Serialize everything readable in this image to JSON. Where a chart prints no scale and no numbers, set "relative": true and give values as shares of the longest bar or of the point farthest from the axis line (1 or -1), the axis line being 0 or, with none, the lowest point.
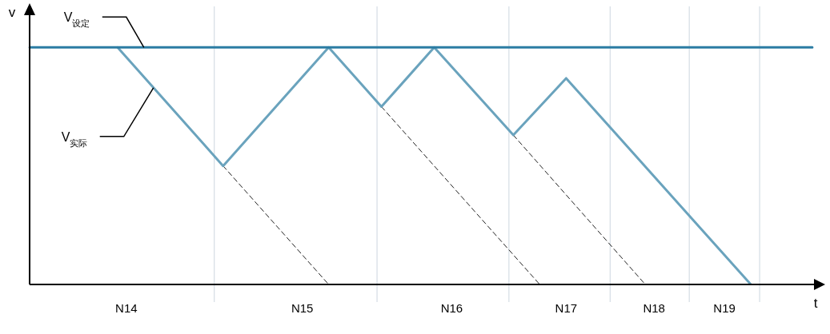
{
  "chart_data": {
    "type": "line",
    "relative": true,
    "xlabel": "t",
    "ylabel": "v",
    "legend": false,
    "categories": [
      null,
      null,
      null,
      null,
      null,
      null,
      null,
      null,
      null,
      null,
      null,
      "N14",
      null,
      null,
      null,
      null,
      null,
      null,
      null,
      null,
      null,
      null,
      null,
      null,
      null,
      null,
      null,
      null,
      null,
      null,
      null,
      "N15",
      null,
      null,
      null,
      null,
      null,
      null,
      null,
      null,
      null,
      null,
      null,
      null,
      null,
      null,
      null,
      null,
      "N16",
      null,
      null,
      null,
      null,
      null,
      null,
      null,
      null,
      null,
      null,
      null,
      null,
      "N17",
      null,
      null,
      null,
      null,
      null,
      null,
      null,
      null,
      null,
      "N18",
      null,
      null,
      null,
      null,
      null,
      null,
      null,
      "N19",
      null,
      null,
      null,
      null,
      null,
      null,
      null,
      null,
      null,
      null
    ],
    "series": [
      {
        "name": "V$_{设定}$",
        "color": "#2b7ca3",
        "values": [
          1,
          null,
          null,
          null,
          null,
          null,
          null,
          null,
          null,
          null,
          null,
          null,
          null,
          null,
          null,
          null,
          null,
          null,
          null,
          null,
          null,
          null,
          null,
          null,
          null,
          null,
          null,
          null,
          null,
          null,
          null,
          null,
          null,
          null,
          null,
          null,
          null,
          null,
          null,
          null,
          null,
          null,
          null,
          null,
          null,
          null,
          null,
          null,
          null,
          null,
          null,
          null,
          null,
          null,
          null,
          null,
          null,
          null,
          null,
          null,
          null,
          null,
          null,
          null,
          null,
          null,
          null,
          null,
          null,
          null,
          null,
          null,
          null,
          null,
          null,
          null,
          null,
          null,
          null,
          null,
          null,
          null,
          null,
          null,
          null,
          null,
          null,
          null,
          null,
          1
        ]
      },
      {
        "name": "V$_{实际}$",
        "color": "#6aa3bd",
        "values": [
          null,
          null,
          null,
          null,
          null,
          null,
          null,
          null,
          null,
          null,
          1,
          null,
          null,
          null,
          null,
          null,
          null,
          null,
          null,
          null,
          null,
          null,
          0.5,
          null,
          null,
          null,
          null,
          null,
          null,
          null,
          null,
          null,
          null,
          null,
          1,
          null,
          null,
          null,
          null,
          null,
          0.75,
          null,
          null,
          null,
          null,
          null,
          1,
          null,
          null,
          null,
          null,
          null,
          null,
          null,
          null,
          0.63,
          null,
          null,
          null,
          null,
          null,
          0.87,
          null,
          null,
          null,
          null,
          null,
          null,
          null,
          null,
          null,
          null,
          null,
          null,
          null,
          null,
          null,
          null,
          null,
          null,
          null,
          null,
          0,
          null,
          null,
          null,
          null,
          null,
          null,
          null
        ]
      },
      {
        "color": "#222222",
        "line_style": "dashed",
        "values": [
          null,
          null,
          null,
          null,
          null,
          null,
          null,
          null,
          null,
          null,
          null,
          null,
          null,
          null,
          null,
          null,
          null,
          null,
          null,
          null,
          null,
          null,
          0.5,
          null,
          null,
          null,
          null,
          null,
          null,
          null,
          null,
          null,
          null,
          null,
          0,
          null,
          null,
          null,
          null,
          null,
          null,
          null,
          null,
          null,
          null,
          null,
          null,
          null,
          null,
          null,
          null,
          null,
          null,
          null,
          null,
          null,
          null,
          null,
          null,
          null,
          null,
          null,
          null,
          null,
          null,
          null,
          null,
          null,
          null,
          null,
          null,
          null,
          null,
          null,
          null,
          null,
          null,
          null,
          null,
          null,
          null,
          null,
          null,
          null,
          null,
          null,
          null,
          null,
          null,
          null
        ]
      },
      {
        "color": "#222222",
        "line_style": "dashed",
        "values": [
          null,
          null,
          null,
          null,
          null,
          null,
          null,
          null,
          null,
          null,
          null,
          null,
          null,
          null,
          null,
          null,
          null,
          null,
          null,
          null,
          null,
          null,
          null,
          null,
          null,
          null,
          null,
          null,
          null,
          null,
          null,
          null,
          null,
          null,
          null,
          null,
          null,
          null,
          null,
          null,
          0.75,
          null,
          null,
          null,
          null,
          null,
          null,
          null,
          null,
          null,
          null,
          null,
          null,
          null,
          null,
          null,
          null,
          null,
          0,
          null,
          null,
          null,
          null,
          null,
          null,
          null,
          null,
          null,
          null,
          null,
          null,
          null,
          null,
          null,
          null,
          null,
          null,
          null,
          null,
          null,
          null,
          null,
          null,
          null,
          null,
          null,
          null,
          null,
          null,
          null
        ]
      },
      {
        "color": "#222222",
        "line_style": "dashed",
        "values": [
          null,
          null,
          null,
          null,
          null,
          null,
          null,
          null,
          null,
          null,
          null,
          null,
          null,
          null,
          null,
          null,
          null,
          null,
          null,
          null,
          null,
          null,
          null,
          null,
          null,
          null,
          null,
          null,
          null,
          null,
          null,
          null,
          null,
          null,
          null,
          null,
          null,
          null,
          null,
          null,
          null,
          null,
          null,
          null,
          null,
          null,
          null,
          null,
          null,
          null,
          null,
          null,
          null,
          null,
          null,
          0.63,
          null,
          null,
          null,
          null,
          null,
          null,
          null,
          null,
          null,
          null,
          null,
          null,
          null,
          null,
          0,
          null,
          null,
          null,
          null,
          null,
          null,
          null,
          null,
          null,
          null,
          null,
          null,
          null,
          null,
          null,
          null,
          null,
          null,
          null
        ]
      }
    ]
  }
}
